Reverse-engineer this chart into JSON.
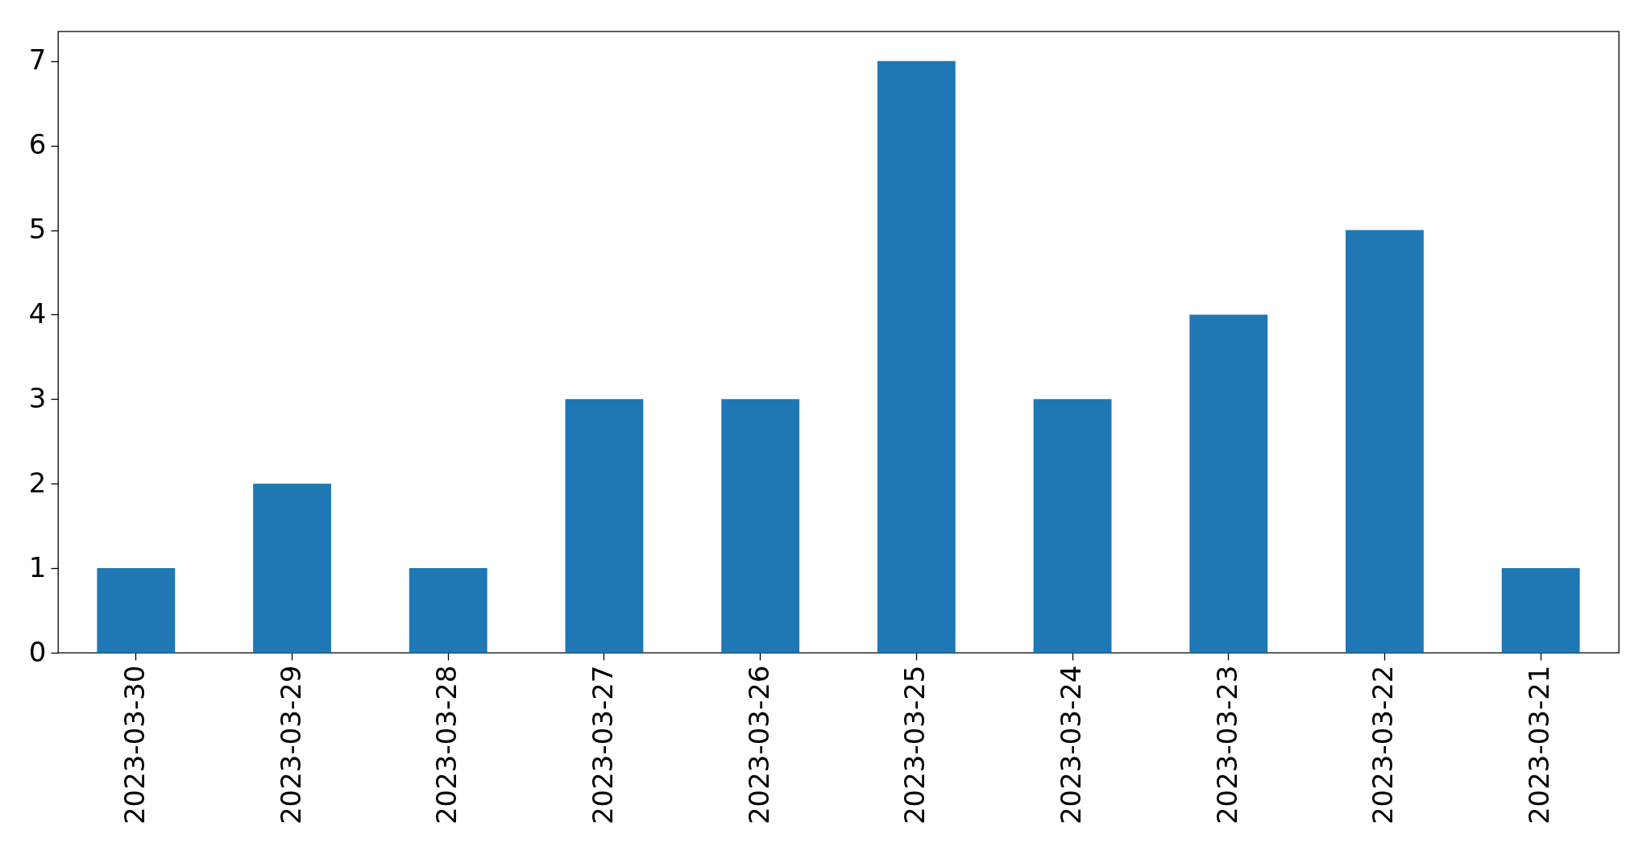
{
  "chart_data": {
    "type": "bar",
    "categories": [
      "2023-03-30",
      "2023-03-29",
      "2023-03-28",
      "2023-03-27",
      "2023-03-26",
      "2023-03-25",
      "2023-03-24",
      "2023-03-23",
      "2023-03-22",
      "2023-03-21"
    ],
    "values": [
      1,
      2,
      1,
      3,
      3,
      7,
      3,
      4,
      5,
      1
    ],
    "color": "#1f77b4",
    "ylim": [
      0,
      7.35
    ],
    "yticks": [
      0,
      1,
      2,
      3,
      4,
      5,
      6,
      7
    ],
    "grid": false
  }
}
